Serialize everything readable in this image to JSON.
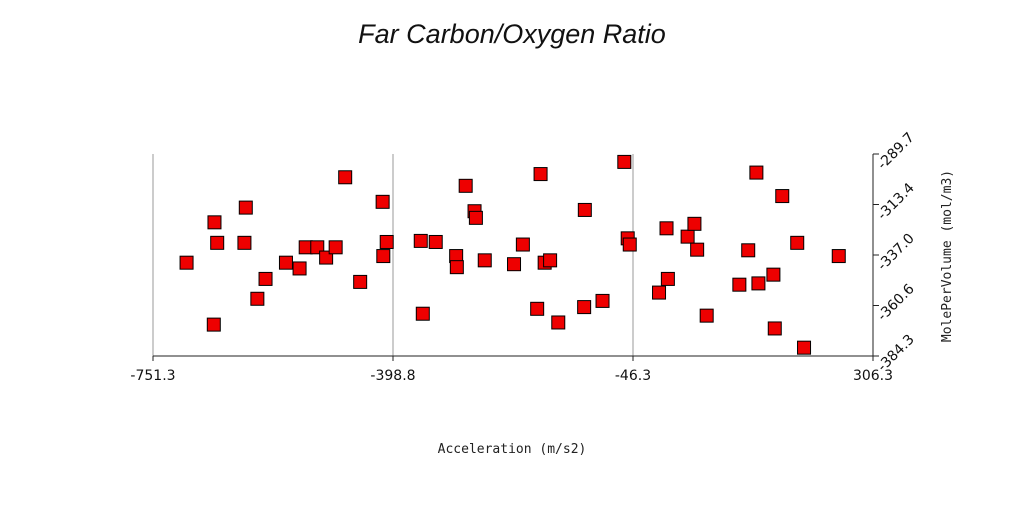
{
  "chart_data": {
    "type": "scatter",
    "title": "Far Carbon/Oxygen Ratio",
    "xlabel": "Acceleration (m/s2)",
    "ylabel": "MolePerVolume (mol/m3)",
    "xlim": [
      -751.3,
      306.3
    ],
    "ylim": [
      -384.3,
      -289.7
    ],
    "x_ticks": [
      "-751.3",
      "-398.8",
      "-46.3",
      "306.3"
    ],
    "y_ticks": [
      "-289.7",
      "-313.4",
      "-337.0",
      "-360.6",
      "-384.3"
    ],
    "y_axis_side": "right",
    "grid": "vertical",
    "marker": "square",
    "marker_color": "#ee0000",
    "points": [
      {
        "x": -702,
        "y": -340.6
      },
      {
        "x": -661,
        "y": -321.7
      },
      {
        "x": -657,
        "y": -331.3
      },
      {
        "x": -662,
        "y": -369.6
      },
      {
        "x": -615,
        "y": -314.8
      },
      {
        "x": -617,
        "y": -331.3
      },
      {
        "x": -598,
        "y": -357.5
      },
      {
        "x": -586,
        "y": -348.2
      },
      {
        "x": -556,
        "y": -340.6
      },
      {
        "x": -536,
        "y": -343.3
      },
      {
        "x": -527,
        "y": -333.4
      },
      {
        "x": -510,
        "y": -333.4
      },
      {
        "x": -497,
        "y": -338.2
      },
      {
        "x": -483,
        "y": -333.4
      },
      {
        "x": -469,
        "y": -300.6
      },
      {
        "x": -447,
        "y": -349.6
      },
      {
        "x": -414,
        "y": -312.1
      },
      {
        "x": -413,
        "y": -337.5
      },
      {
        "x": -408,
        "y": -330.9
      },
      {
        "x": -358,
        "y": -330.4
      },
      {
        "x": -355,
        "y": -364.5
      },
      {
        "x": -336,
        "y": -330.9
      },
      {
        "x": -306,
        "y": -337.5
      },
      {
        "x": -305,
        "y": -342.7
      },
      {
        "x": -292,
        "y": -304.6
      },
      {
        "x": -279,
        "y": -316.5
      },
      {
        "x": -277,
        "y": -319.6
      },
      {
        "x": -264,
        "y": -339.5
      },
      {
        "x": -221,
        "y": -341.3
      },
      {
        "x": -208,
        "y": -332.1
      },
      {
        "x": -187,
        "y": -362.2
      },
      {
        "x": -182,
        "y": -299.1
      },
      {
        "x": -176,
        "y": -340.6
      },
      {
        "x": -168,
        "y": -339.5
      },
      {
        "x": -156,
        "y": -368.6
      },
      {
        "x": -117,
        "y": -315.9
      },
      {
        "x": -118,
        "y": -361.4
      },
      {
        "x": -91,
        "y": -358.5
      },
      {
        "x": -59,
        "y": -293.4
      },
      {
        "x": -54,
        "y": -329.2
      },
      {
        "x": -51,
        "y": -332.1
      },
      {
        "x": -8,
        "y": -354.6
      },
      {
        "x": 3,
        "y": -324.5
      },
      {
        "x": 5,
        "y": -348.2
      },
      {
        "x": 34,
        "y": -328.4
      },
      {
        "x": 44,
        "y": -322.4
      },
      {
        "x": 48,
        "y": -334.5
      },
      {
        "x": 62,
        "y": -365.4
      },
      {
        "x": 110,
        "y": -350.9
      },
      {
        "x": 123,
        "y": -334.8
      },
      {
        "x": 135,
        "y": -298.4
      },
      {
        "x": 138,
        "y": -350.3
      },
      {
        "x": 160,
        "y": -346.2
      },
      {
        "x": 162,
        "y": -371.4
      },
      {
        "x": 173,
        "y": -309.4
      },
      {
        "x": 195,
        "y": -331.3
      },
      {
        "x": 205,
        "y": -380.4
      },
      {
        "x": 256,
        "y": -337.5
      }
    ]
  }
}
